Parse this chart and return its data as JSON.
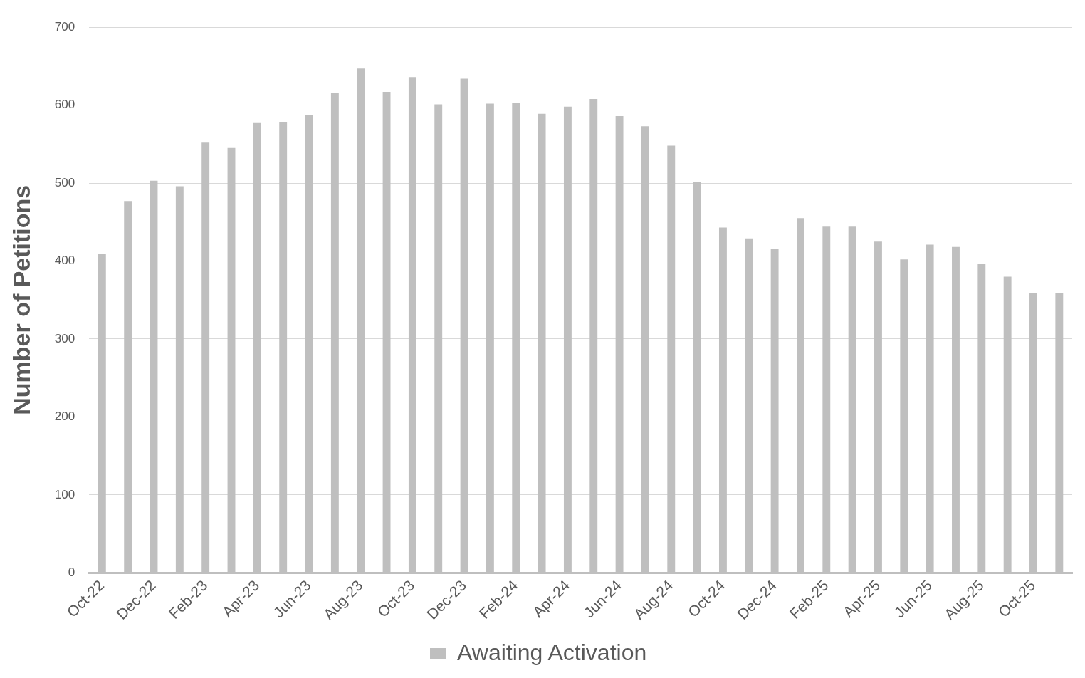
{
  "chart_data": {
    "type": "bar",
    "ylabel": "Number of Petitions",
    "categories": [
      "Oct-22",
      null,
      "Dec-22",
      null,
      "Feb-23",
      null,
      "Apr-23",
      null,
      "Jun-23",
      null,
      "Aug-23",
      null,
      "Oct-23",
      null,
      "Dec-23",
      null,
      "Feb-24",
      null,
      "Apr-24",
      null,
      "Jun-24",
      null,
      "Aug-24",
      null,
      "Oct-24",
      null,
      "Dec-24",
      null,
      "Feb-25",
      null,
      "Apr-25",
      null,
      "Jun-25",
      null,
      "Aug-25",
      null,
      "Oct-25",
      null
    ],
    "series": [
      {
        "name": "Awaiting Activation",
        "color": "#bfbfbf",
        "values": [
          409,
          477,
          503,
          496,
          552,
          545,
          577,
          578,
          587,
          616,
          647,
          617,
          636,
          601,
          634,
          602,
          603,
          589,
          598,
          608,
          586,
          573,
          548,
          502,
          443,
          429,
          416,
          455,
          444,
          444,
          425,
          402,
          421,
          418,
          396,
          380,
          359,
          359
        ]
      }
    ],
    "ylim": [
      0,
      700
    ],
    "yticks": [
      0,
      100,
      200,
      300,
      400,
      500,
      600,
      700
    ],
    "grid": "y",
    "legend": "bottom"
  }
}
